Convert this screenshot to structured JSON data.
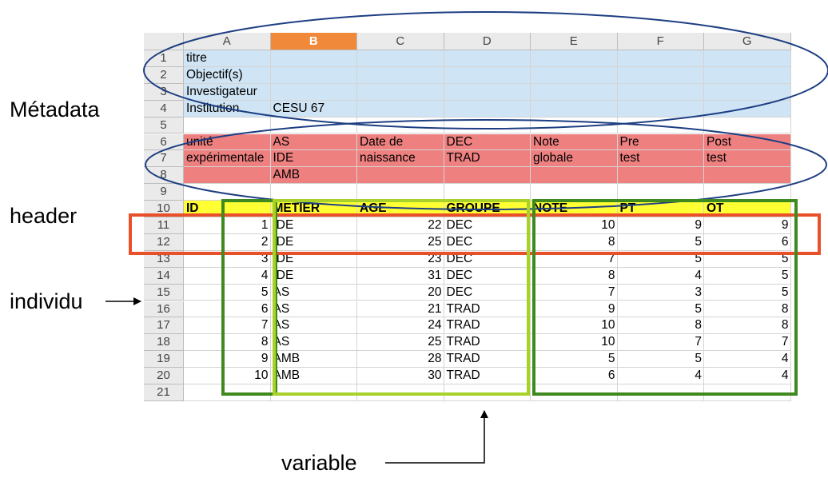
{
  "columns": [
    "A",
    "B",
    "C",
    "D",
    "E",
    "F",
    "G"
  ],
  "selected_column": "B",
  "row_numbers": [
    "1",
    "2",
    "3",
    "4",
    "5",
    "6",
    "7",
    "8",
    "9",
    "10",
    "11",
    "12",
    "13",
    "14",
    "15",
    "16",
    "17",
    "18",
    "19",
    "20",
    "21"
  ],
  "cells": [
    {
      "row": 1,
      "col": "A",
      "text": "titre",
      "fill": "blue"
    },
    {
      "row": 2,
      "col": "A",
      "text": "Objectif(s)",
      "fill": "blue"
    },
    {
      "row": 3,
      "col": "A",
      "text": "Investigateur",
      "fill": "blue"
    },
    {
      "row": 4,
      "col": "A",
      "text": "Institution",
      "fill": "blue"
    },
    {
      "row": 4,
      "col": "B",
      "text": "CESU 67",
      "fill": "blue"
    },
    {
      "row": 6,
      "col": "A",
      "text": "unité",
      "fill": "red"
    },
    {
      "row": 7,
      "col": "A",
      "text": "expérimentale",
      "fill": "red"
    },
    {
      "row": 6,
      "col": "B",
      "text": "AS",
      "fill": "red"
    },
    {
      "row": 7,
      "col": "B",
      "text": "IDE",
      "fill": "red"
    },
    {
      "row": 8,
      "col": "B",
      "text": "AMB",
      "fill": "red"
    },
    {
      "row": 6,
      "col": "C",
      "text": "Date de",
      "fill": "red"
    },
    {
      "row": 7,
      "col": "C",
      "text": "naissance",
      "fill": "red"
    },
    {
      "row": 6,
      "col": "D",
      "text": "DEC",
      "fill": "red"
    },
    {
      "row": 7,
      "col": "D",
      "text": "TRAD",
      "fill": "red"
    },
    {
      "row": 6,
      "col": "E",
      "text": "Note",
      "fill": "red"
    },
    {
      "row": 7,
      "col": "E",
      "text": "globale",
      "fill": "red"
    },
    {
      "row": 6,
      "col": "F",
      "text": "Pre",
      "fill": "red"
    },
    {
      "row": 7,
      "col": "F",
      "text": "test",
      "fill": "red"
    },
    {
      "row": 6,
      "col": "G",
      "text": "Post",
      "fill": "red"
    },
    {
      "row": 7,
      "col": "G",
      "text": "test",
      "fill": "red"
    }
  ],
  "header_row": {
    "row": 10,
    "labels": [
      "ID",
      "METIER",
      "AGE",
      "GROUPE",
      "NOTE",
      "PT",
      "OT"
    ]
  },
  "data_rows": [
    {
      "row": 11,
      "values": [
        "1",
        "IDE",
        "22",
        "DEC",
        "10",
        "9",
        "9"
      ]
    },
    {
      "row": 12,
      "values": [
        "2",
        "IDE",
        "25",
        "DEC",
        "8",
        "5",
        "6"
      ]
    },
    {
      "row": 13,
      "values": [
        "3",
        "IDE",
        "23",
        "DEC",
        "7",
        "5",
        "5"
      ]
    },
    {
      "row": 14,
      "values": [
        "4",
        "IDE",
        "31",
        "DEC",
        "8",
        "4",
        "5"
      ]
    },
    {
      "row": 15,
      "values": [
        "5",
        "AS",
        "20",
        "DEC",
        "7",
        "3",
        "5"
      ]
    },
    {
      "row": 16,
      "values": [
        "6",
        "AS",
        "21",
        "TRAD",
        "9",
        "5",
        "8"
      ]
    },
    {
      "row": 17,
      "values": [
        "7",
        "AS",
        "24",
        "TRAD",
        "10",
        "8",
        "8"
      ]
    },
    {
      "row": 18,
      "values": [
        "8",
        "AS",
        "25",
        "TRAD",
        "10",
        "7",
        "7"
      ]
    },
    {
      "row": 19,
      "values": [
        "9",
        "AMB",
        "28",
        "TRAD",
        "5",
        "5",
        "4"
      ]
    },
    {
      "row": 20,
      "values": [
        "10",
        "AMB",
        "30",
        "TRAD",
        "6",
        "4",
        "4"
      ]
    }
  ],
  "labels": {
    "metadata": "Métadata",
    "header": "header",
    "individu": "individu",
    "variable": "variable"
  },
  "colors": {
    "metadata_fill": "#cfe4f4",
    "attr_fill": "#ef8080",
    "header_fill": "#ffff33",
    "ellipse": "#1d3e82",
    "header_box": "#e8502a",
    "id_box": "#3f8a1f",
    "variable_box": "#a8d12a",
    "values_box": "#3f8a1f",
    "selected_col": "#f0893a"
  }
}
